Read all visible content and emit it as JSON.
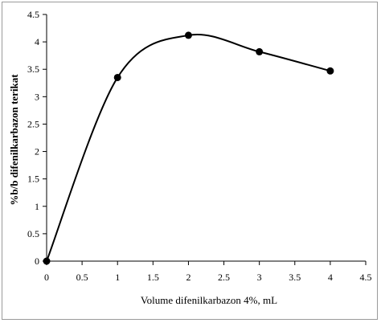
{
  "chart_data": {
    "type": "line",
    "title": "",
    "xlabel": "Volume difenilkarbazon 4%, mL",
    "ylabel": "%b/b difenilkarbazon terikat",
    "x": [
      0,
      1,
      2,
      3,
      4
    ],
    "series": [
      {
        "values": [
          0,
          3.35,
          4.12,
          3.82,
          3.47
        ]
      }
    ],
    "xlim": [
      0,
      4.5
    ],
    "ylim": [
      0,
      4.5
    ],
    "xticks": [
      "0",
      "0.5",
      "1",
      "1.5",
      "2",
      "2.5",
      "3",
      "3.5",
      "4",
      "4.5"
    ],
    "yticks": [
      "0",
      "0.5",
      "1",
      "1.5",
      "2",
      "2.5",
      "3",
      "3.5",
      "4",
      "4.5"
    ],
    "grid": false,
    "smooth": true,
    "marker": "circle",
    "line_color": "#000000",
    "marker_color": "#000000"
  }
}
